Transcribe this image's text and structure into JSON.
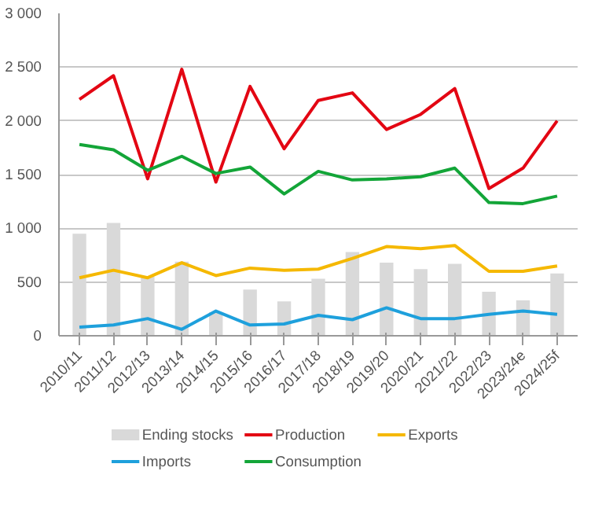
{
  "chart_data": {
    "type": "line",
    "categories": [
      "2010/11",
      "2011/12",
      "2012/13",
      "2013/14",
      "2014/15",
      "2015/16",
      "2016/17",
      "2017/18",
      "2018/19",
      "2019/20",
      "2020/21",
      "2021/22",
      "2022/23",
      "2023/24e",
      "2024/25f"
    ],
    "ylim": [
      0,
      3000
    ],
    "yticks": [
      0,
      {
        "value": 500,
        "label": "500"
      },
      {
        "value": 1000,
        "label": "1 000"
      },
      {
        "value": 1500,
        "label": "1 500"
      },
      {
        "value": 2000,
        "label": "2 000"
      },
      {
        "value": 2500,
        "label": "2 500"
      },
      {
        "value": 3000,
        "label": "3 000"
      }
    ],
    "grid": "y",
    "legend": "bottom",
    "marker": "none",
    "line_style": "solid",
    "series": [
      {
        "name": "Ending stocks",
        "type": "bar",
        "color": "#d9d9d9",
        "values": [
          950,
          1050,
          550,
          690,
          220,
          430,
          320,
          530,
          780,
          680,
          620,
          670,
          410,
          330,
          580
        ]
      },
      {
        "name": "Production",
        "color": "#e30613",
        "values": [
          2200,
          2420,
          1460,
          2480,
          1430,
          2320,
          1740,
          2190,
          2260,
          1920,
          2060,
          2300,
          1370,
          1560,
          2000
        ]
      },
      {
        "name": "Exports",
        "color": "#f5b800",
        "values": [
          540,
          610,
          540,
          680,
          560,
          630,
          610,
          620,
          720,
          830,
          810,
          840,
          600,
          600,
          650
        ]
      },
      {
        "name": "Imports",
        "color": "#1ea0dc",
        "values": [
          80,
          100,
          160,
          60,
          230,
          100,
          110,
          190,
          150,
          260,
          160,
          160,
          200,
          230,
          200
        ]
      },
      {
        "name": "Consumption",
        "color": "#13a538",
        "values": [
          1780,
          1730,
          1540,
          1670,
          1510,
          1570,
          1320,
          1530,
          1450,
          1460,
          1480,
          1560,
          1240,
          1230,
          1300
        ]
      }
    ]
  }
}
